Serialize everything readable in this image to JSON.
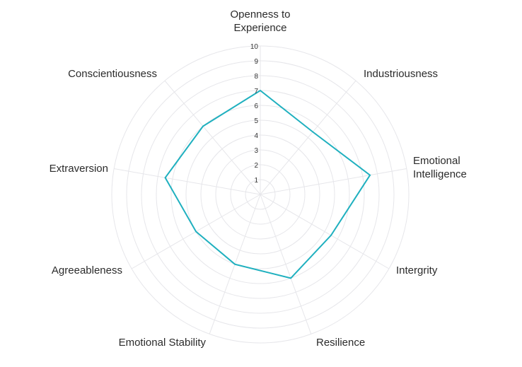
{
  "chart_data": {
    "type": "radar",
    "title": "",
    "axes": [
      [
        "Openness to",
        "Experience"
      ],
      [
        "Industriousness"
      ],
      [
        "Emotional",
        "Intelligence"
      ],
      [
        "Intergrity"
      ],
      [
        "Resilience"
      ],
      [
        "Emotional Stability"
      ],
      [
        "Agreeableness"
      ],
      [
        "Extraversion"
      ],
      [
        "Conscientiousness"
      ]
    ],
    "range": [
      0,
      10
    ],
    "ticks": [
      "1",
      "2",
      "3",
      "4",
      "5",
      "6",
      "7",
      "8",
      "9",
      "10"
    ],
    "series": [
      {
        "values": [
          7,
          5.5,
          7.5,
          5.5,
          6,
          5,
          5,
          6.5,
          6
        ],
        "color": "#1fb0bf"
      }
    ],
    "grid": true,
    "grid_color": "#e6e6ea"
  }
}
